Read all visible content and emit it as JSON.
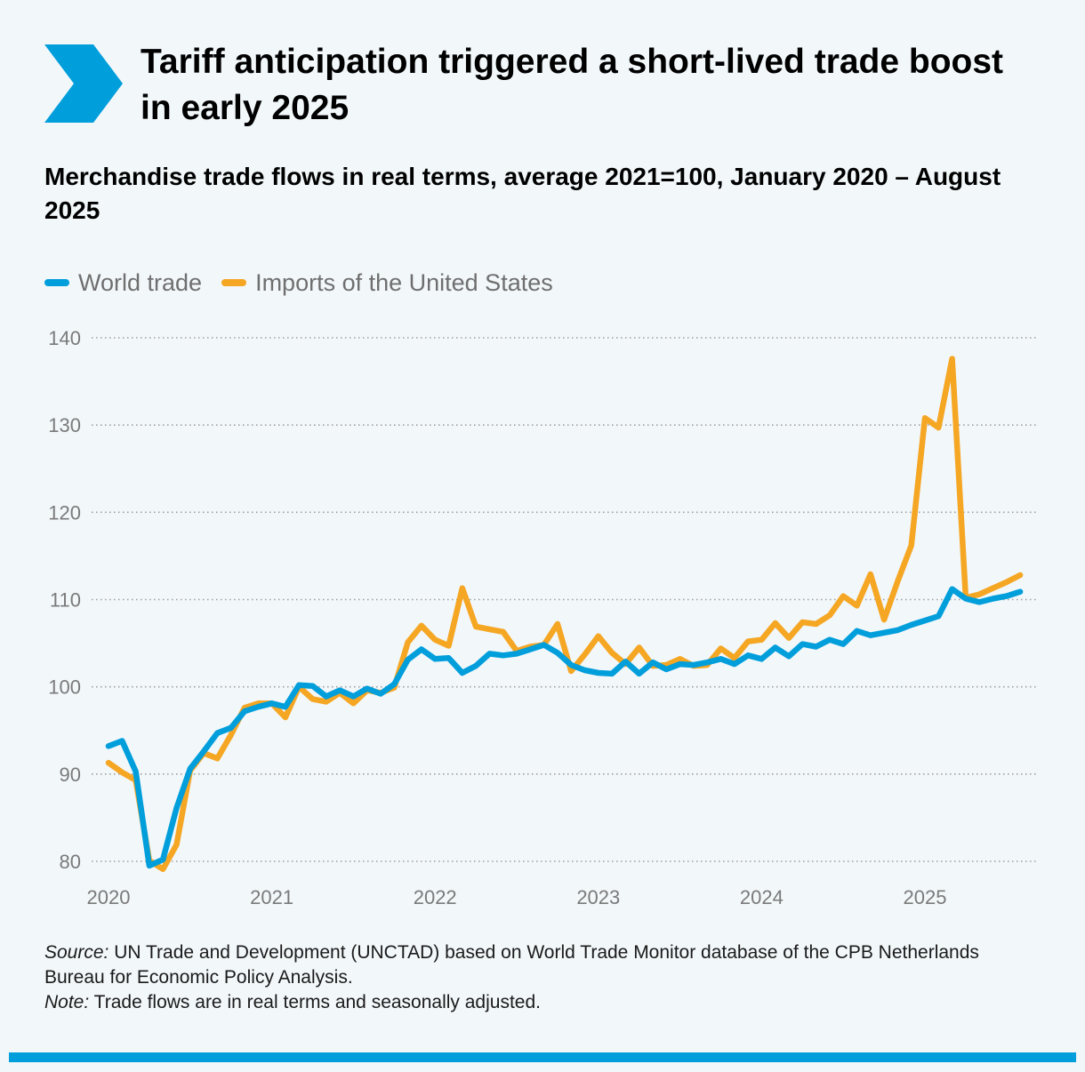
{
  "header": {
    "title": "Tariff anticipation triggered a short-lived trade boost in early 2025",
    "subtitle": "Merchandise trade flows in real terms, average 2021=100, January 2020 – August 2025"
  },
  "colors": {
    "accent": "#009edb",
    "world": "#009edb",
    "us": "#f5a623",
    "grid": "#9e9e9e",
    "background": "#f2f7fa"
  },
  "icons": {
    "header_marker": "chevron-right-icon"
  },
  "footnote": {
    "source_label": "Source:",
    "source_text": "UN Trade and Development (UNCTAD) based on World Trade Monitor database of the CPB Netherlands Bureau for Economic Policy Analysis.",
    "note_label": "Note:",
    "note_text": "Trade flows are in real terms and seasonally adjusted."
  },
  "chart_data": {
    "type": "line",
    "xlabel": "",
    "ylabel": "",
    "ylim": [
      80,
      140
    ],
    "yticks": [
      80,
      90,
      100,
      110,
      120,
      130,
      140
    ],
    "xticks": [
      "2020",
      "2021",
      "2022",
      "2023",
      "2024",
      "2025"
    ],
    "grid": true,
    "legend_position": "top-left",
    "x": [
      "2020-01",
      "2020-02",
      "2020-03",
      "2020-04",
      "2020-05",
      "2020-06",
      "2020-07",
      "2020-08",
      "2020-09",
      "2020-10",
      "2020-11",
      "2020-12",
      "2021-01",
      "2021-02",
      "2021-03",
      "2021-04",
      "2021-05",
      "2021-06",
      "2021-07",
      "2021-08",
      "2021-09",
      "2021-10",
      "2021-11",
      "2021-12",
      "2022-01",
      "2022-02",
      "2022-03",
      "2022-04",
      "2022-05",
      "2022-06",
      "2022-07",
      "2022-08",
      "2022-09",
      "2022-10",
      "2022-11",
      "2022-12",
      "2023-01",
      "2023-02",
      "2023-03",
      "2023-04",
      "2023-05",
      "2023-06",
      "2023-07",
      "2023-08",
      "2023-09",
      "2023-10",
      "2023-11",
      "2023-12",
      "2024-01",
      "2024-02",
      "2024-03",
      "2024-04",
      "2024-05",
      "2024-06",
      "2024-07",
      "2024-08",
      "2024-09",
      "2024-10",
      "2024-11",
      "2024-12",
      "2025-01",
      "2025-02",
      "2025-03",
      "2025-04",
      "2025-05",
      "2025-06",
      "2025-07",
      "2025-08"
    ],
    "series": [
      {
        "name": "World trade",
        "values": [
          93.2,
          93.8,
          90.3,
          79.5,
          80.2,
          86.1,
          90.6,
          92.6,
          94.7,
          95.3,
          97.2,
          97.7,
          98.1,
          97.7,
          100.2,
          100.1,
          98.9,
          99.6,
          98.9,
          99.8,
          99.2,
          100.3,
          103.1,
          104.3,
          103.2,
          103.3,
          101.6,
          102.4,
          103.8,
          103.6,
          103.8,
          104.3,
          104.8,
          103.9,
          102.5,
          101.9,
          101.6,
          101.5,
          102.9,
          101.5,
          102.8,
          102.0,
          102.6,
          102.5,
          102.8,
          103.2,
          102.6,
          103.6,
          103.2,
          104.5,
          103.5,
          104.9,
          104.6,
          105.4,
          104.9,
          106.4,
          105.9,
          106.2,
          106.5,
          107.1,
          107.6,
          108.1,
          111.2,
          110.1,
          109.7,
          110.1,
          110.4,
          110.9
        ]
      },
      {
        "name": "Imports of the United States",
        "values": [
          91.3,
          90.2,
          89.3,
          80.1,
          79.1,
          81.9,
          90.4,
          92.4,
          91.8,
          94.5,
          97.6,
          98.1,
          98.1,
          96.5,
          100.0,
          98.6,
          98.3,
          99.3,
          98.1,
          99.6,
          99.3,
          99.9,
          105.1,
          107.0,
          105.4,
          104.7,
          111.3,
          106.9,
          106.6,
          106.3,
          104.1,
          104.6,
          104.8,
          107.2,
          101.8,
          103.7,
          105.8,
          103.9,
          102.6,
          104.5,
          102.4,
          102.5,
          103.2,
          102.4,
          102.5,
          104.4,
          103.3,
          105.2,
          105.4,
          107.3,
          105.6,
          107.4,
          107.2,
          108.2,
          110.4,
          109.3,
          112.9,
          107.7,
          112.1,
          116.2,
          130.8,
          129.7,
          137.6,
          110.2,
          110.6,
          111.3,
          112.0,
          112.8
        ]
      }
    ]
  }
}
